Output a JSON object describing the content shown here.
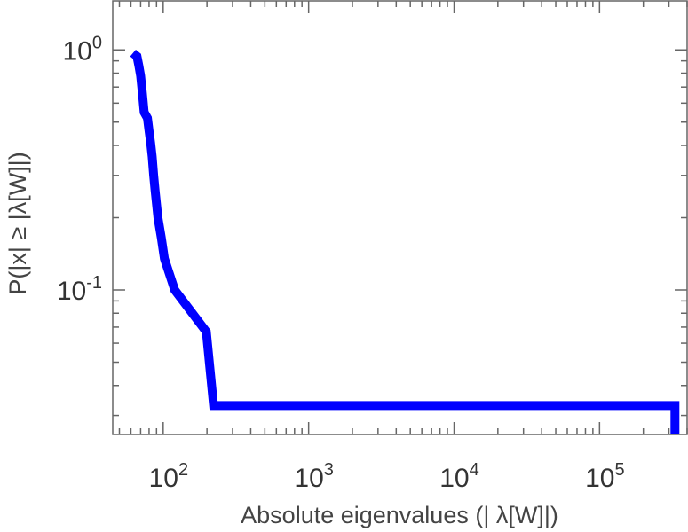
{
  "chart_data": {
    "type": "line",
    "title": "",
    "xlabel": "Absolute eigenvalues (|      λ[W]|)",
    "ylabel": "P(|x|  ≥ |λ[W]|)",
    "x_scale": "log",
    "y_scale": "log",
    "xlim": [
      45,
      400000
    ],
    "ylim": [
      0.025,
      1.6
    ],
    "grid": false,
    "legend": "none",
    "x_ticks": [
      {
        "value": 100,
        "base": "10",
        "exp": "2"
      },
      {
        "value": 1000,
        "base": "10",
        "exp": "3"
      },
      {
        "value": 10000,
        "base": "10",
        "exp": "4"
      },
      {
        "value": 100000,
        "base": "10",
        "exp": "5"
      }
    ],
    "y_ticks": [
      {
        "value": 1,
        "base": "10",
        "exp": "0"
      },
      {
        "value": 0.1,
        "base": "10",
        "exp": "-1"
      }
    ],
    "series": [
      {
        "color": "#0000ff",
        "style": "step",
        "x": [
          62,
          66,
          68,
          70,
          72,
          74,
          78,
          80,
          82,
          84,
          86,
          88,
          92,
          97,
          102,
          120,
          198,
          222,
          330000,
          330000
        ],
        "y": [
          0.97,
          0.94,
          0.86,
          0.78,
          0.66,
          0.55,
          0.52,
          0.46,
          0.41,
          0.36,
          0.3,
          0.26,
          0.2,
          0.165,
          0.135,
          0.1,
          0.067,
          0.033,
          0.033,
          0.025
        ]
      }
    ]
  }
}
